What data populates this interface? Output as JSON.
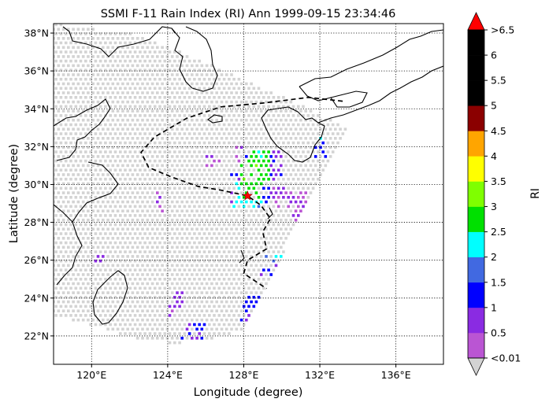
{
  "chart_data": {
    "type": "map-scatter",
    "title": "SSMI F-11 Rain Index (RI) Ann 1999-09-15 23:34:46",
    "xlabel": "Longitude (degree)",
    "ylabel": "Latitude (degree)",
    "xlim": [
      118,
      138.5
    ],
    "ylim": [
      20.5,
      38.5
    ],
    "xticks": [
      {
        "value": 120,
        "label": "120°E"
      },
      {
        "value": 124,
        "label": "124°E"
      },
      {
        "value": 128,
        "label": "128°E"
      },
      {
        "value": 132,
        "label": "132°E"
      },
      {
        "value": 136,
        "label": "136°E"
      }
    ],
    "yticks": [
      {
        "value": 22,
        "label": "22°N"
      },
      {
        "value": 24,
        "label": "24°N"
      },
      {
        "value": 26,
        "label": "26°N"
      },
      {
        "value": 28,
        "label": "28°N"
      },
      {
        "value": 30,
        "label": "30°N"
      },
      {
        "value": 32,
        "label": "32°N"
      },
      {
        "value": 34,
        "label": "34°N"
      },
      {
        "value": 36,
        "label": "36°N"
      },
      {
        "value": 38,
        "label": "38°N"
      }
    ],
    "grid": "dotted",
    "colorbar": {
      "label": "RI",
      "boundaries": [
        0.01,
        0.5,
        1,
        1.5,
        2,
        2.5,
        3,
        3.5,
        4,
        4.5,
        5,
        5.5,
        6,
        6.5
      ],
      "tick_labels": [
        "<0.01",
        "0.5",
        "1",
        "1.5",
        "2",
        "2.5",
        "3",
        "3.5",
        "4",
        "4.5",
        "5",
        "5.5",
        "6",
        ">6.5"
      ],
      "colors": [
        "#ba55d3",
        "#8a2be2",
        "#0000ff",
        "#4169e1",
        "#00ffff",
        "#00e000",
        "#7fff00",
        "#ffff00",
        "#ffa500",
        "#8b0000",
        "#000000",
        "#000000",
        "#000000"
      ],
      "under_color": "#d3d3d3",
      "over_color": "#ff0000"
    },
    "storm_center": {
      "lon": 128.2,
      "lat": 29.4
    },
    "swath": {
      "edge_ne": [
        [
          122.5,
          37.9
        ],
        [
          127,
          36.0
        ],
        [
          131,
          34.2
        ],
        [
          133.5,
          33.0
        ]
      ],
      "edge_se": [
        [
          133.5,
          33.0
        ],
        [
          132.6,
          31.5
        ],
        [
          131.6,
          29.5
        ],
        [
          130.6,
          27.5
        ],
        [
          129.8,
          25.8
        ],
        [
          129.2,
          24.5
        ],
        [
          128.6,
          23.3
        ],
        [
          128.0,
          22.3
        ]
      ],
      "edge_s": [
        [
          128.0,
          22.3
        ],
        [
          126.5,
          21.9
        ],
        [
          124.5,
          21.6
        ],
        [
          122.5,
          21.8
        ],
        [
          120.5,
          22.4
        ],
        [
          118.0,
          23.1
        ]
      ],
      "west_lon": 118
    },
    "rain_clusters": [
      {
        "lon": [
          127.4,
          129.0
        ],
        "lat": [
          28.7,
          30.2
        ],
        "ri": 2.2
      },
      {
        "lon": [
          127.8,
          128.8
        ],
        "lat": [
          29.3,
          31.0
        ],
        "ri": 2.8
      },
      {
        "lon": [
          128.2,
          129.4
        ],
        "lat": [
          30.0,
          31.8
        ],
        "ri": 2.7
      },
      {
        "lon": [
          128.1,
          129.4
        ],
        "lat": [
          29.0,
          31.6
        ],
        "ri": 1.2
      },
      {
        "lon": [
          127.3,
          128.0
        ],
        "lat": [
          28.6,
          30.6
        ],
        "ri": 1.1
      },
      {
        "lon": [
          129.3,
          130.0
        ],
        "lat": [
          30.2,
          31.8
        ],
        "ri": 0.8
      },
      {
        "lon": [
          127.5,
          128.0
        ],
        "lat": [
          30.8,
          32.0
        ],
        "ri": 0.4
      },
      {
        "lon": [
          129.4,
          130.6
        ],
        "lat": [
          28.8,
          30.0
        ],
        "ri": 0.5
      },
      {
        "lon": [
          129.1,
          130.0
        ],
        "lat": [
          25.8,
          26.3
        ],
        "ri": 2.0
      },
      {
        "lon": [
          128.8,
          129.9
        ],
        "lat": [
          25.0,
          26.0
        ],
        "ri": 1.1
      },
      {
        "lon": [
          128.0,
          129.4
        ],
        "lat": [
          23.2,
          24.2
        ],
        "ri": 1.2
      },
      {
        "lon": [
          129.0,
          129.6
        ],
        "lat": [
          23.3,
          23.8
        ],
        "ri": 2.0
      },
      {
        "lon": [
          127.8,
          129.0
        ],
        "lat": [
          22.8,
          23.3
        ],
        "ri": 0.8
      },
      {
        "lon": [
          124.7,
          126.0
        ],
        "lat": [
          21.8,
          22.8
        ],
        "ri": 1.1
      },
      {
        "lon": [
          124.3,
          125.0
        ],
        "lat": [
          23.5,
          24.3
        ],
        "ri": 0.7
      },
      {
        "lon": [
          124.0,
          124.5
        ],
        "lat": [
          23.0,
          24.0
        ],
        "ri": 0.4
      },
      {
        "lon": [
          123.4,
          123.8
        ],
        "lat": [
          28.5,
          29.6
        ],
        "ri": 0.4
      },
      {
        "lon": [
          120.2,
          120.8
        ],
        "lat": [
          25.8,
          26.3
        ],
        "ri": 0.7
      },
      {
        "lon": [
          131.7,
          132.4
        ],
        "lat": [
          31.3,
          32.2
        ],
        "ri": 1.1
      },
      {
        "lon": [
          131.8,
          132.2
        ],
        "lat": [
          32.2,
          32.6
        ],
        "ri": 2.0
      },
      {
        "lon": [
          130.6,
          131.3
        ],
        "lat": [
          28.0,
          29.6
        ],
        "ri": 0.4
      },
      {
        "lon": [
          126.0,
          126.8
        ],
        "lat": [
          30.9,
          31.6
        ],
        "ri": 0.4
      }
    ],
    "track_dashed": [
      [
        133.2,
        34.4
      ],
      [
        131.4,
        34.6
      ],
      [
        129.0,
        34.3
      ],
      [
        126.8,
        34.1
      ],
      [
        125.0,
        33.5
      ],
      [
        123.3,
        32.5
      ],
      [
        122.6,
        31.7
      ],
      [
        123.0,
        30.9
      ],
      [
        124.2,
        30.4
      ],
      [
        125.6,
        29.9
      ],
      [
        126.8,
        29.7
      ],
      [
        128.2,
        29.4
      ],
      [
        128.9,
        28.9
      ],
      [
        129.4,
        28.2
      ],
      [
        129.0,
        27.5
      ],
      [
        129.2,
        26.6
      ],
      [
        128.2,
        26.0
      ],
      [
        128.0,
        25.3
      ],
      [
        128.6,
        24.9
      ],
      [
        129.2,
        24.5
      ]
    ]
  }
}
